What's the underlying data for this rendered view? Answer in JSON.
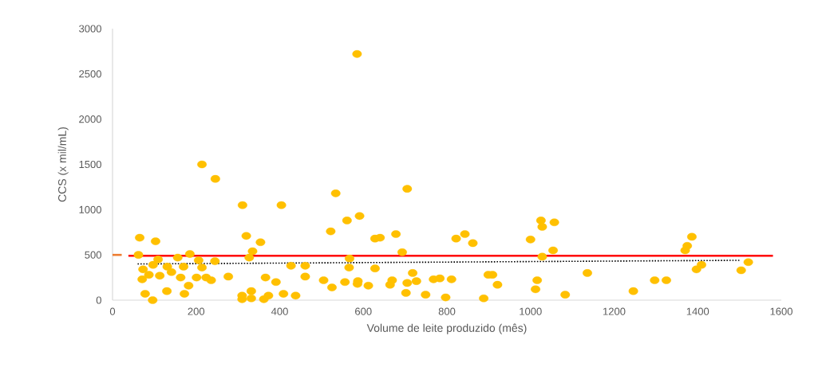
{
  "chart_data": {
    "type": "scatter",
    "xlabel": "Volume de leite produzido (mês)",
    "ylabel": "CCS (x mil/mL)",
    "xlim": [
      0,
      1600
    ],
    "ylim": [
      0,
      3000
    ],
    "xticks": [
      0,
      200,
      400,
      600,
      800,
      1000,
      1200,
      1400,
      1600
    ],
    "yticks": [
      0,
      500,
      1000,
      1500,
      2000,
      2500,
      3000
    ],
    "grid": false,
    "series": [
      {
        "marker": "circle",
        "color": "#ffc000",
        "x": [
          214,
          246,
          311,
          404,
          534,
          65,
          103,
          320,
          354,
          522,
          62,
          185,
          335,
          327,
          109,
          156,
          206,
          245,
          97,
          73,
          131,
          170,
          214,
          141,
          87,
          113,
          71,
          163,
          201,
          224,
          236,
          277,
          366,
          391,
          427,
          461,
          461,
          505,
          525,
          182,
          78,
          130,
          172,
          96,
          310,
          310,
          332,
          332,
          362,
          373,
          409,
          438,
          705,
          561,
          591,
          628,
          640,
          678,
          822,
          843,
          862,
          1000,
          1025,
          1028,
          1057,
          693,
          567,
          1054,
          1028,
          566,
          628,
          718,
          899,
          909,
          921,
          556,
          587,
          586,
          612,
          669,
          664,
          705,
          727,
          702,
          749,
          797,
          768,
          783,
          811,
          888,
          1016,
          1012,
          1083,
          1136,
          1246,
          1297,
          1325,
          1386,
          1375,
          1370,
          1397,
          1409,
          1504,
          1521,
          585
        ],
        "values": [
          1500,
          1340,
          1050,
          1050,
          1180,
          690,
          650,
          710,
          640,
          760,
          500,
          510,
          540,
          470,
          450,
          470,
          440,
          430,
          390,
          340,
          370,
          370,
          360,
          310,
          280,
          270,
          230,
          250,
          250,
          250,
          220,
          260,
          250,
          200,
          380,
          380,
          260,
          220,
          140,
          160,
          70,
          100,
          70,
          0,
          50,
          10,
          100,
          20,
          10,
          50,
          70,
          50,
          1230,
          880,
          930,
          680,
          690,
          730,
          680,
          730,
          630,
          670,
          880,
          810,
          860,
          530,
          460,
          550,
          480,
          360,
          350,
          300,
          280,
          280,
          170,
          200,
          210,
          180,
          160,
          220,
          170,
          190,
          210,
          80,
          60,
          30,
          230,
          240,
          230,
          20,
          220,
          120,
          60,
          300,
          100,
          220,
          220,
          700,
          600,
          550,
          340,
          390,
          330,
          420,
          2720
        ]
      },
      {
        "type": "line",
        "marker": "none",
        "color": "#ff0000",
        "line_style": "solid",
        "x": [
          38,
          1580
        ],
        "values": [
          490,
          490
        ]
      },
      {
        "type": "line",
        "marker": "none",
        "color": "#000000",
        "line_style": "dotted",
        "x": [
          60,
          1500
        ],
        "values": [
          400,
          440
        ]
      },
      {
        "type": "line",
        "marker": "none",
        "color": "#ed7d31",
        "line_style": "solid",
        "x": [
          0,
          22
        ],
        "values": [
          500,
          500
        ]
      }
    ]
  }
}
